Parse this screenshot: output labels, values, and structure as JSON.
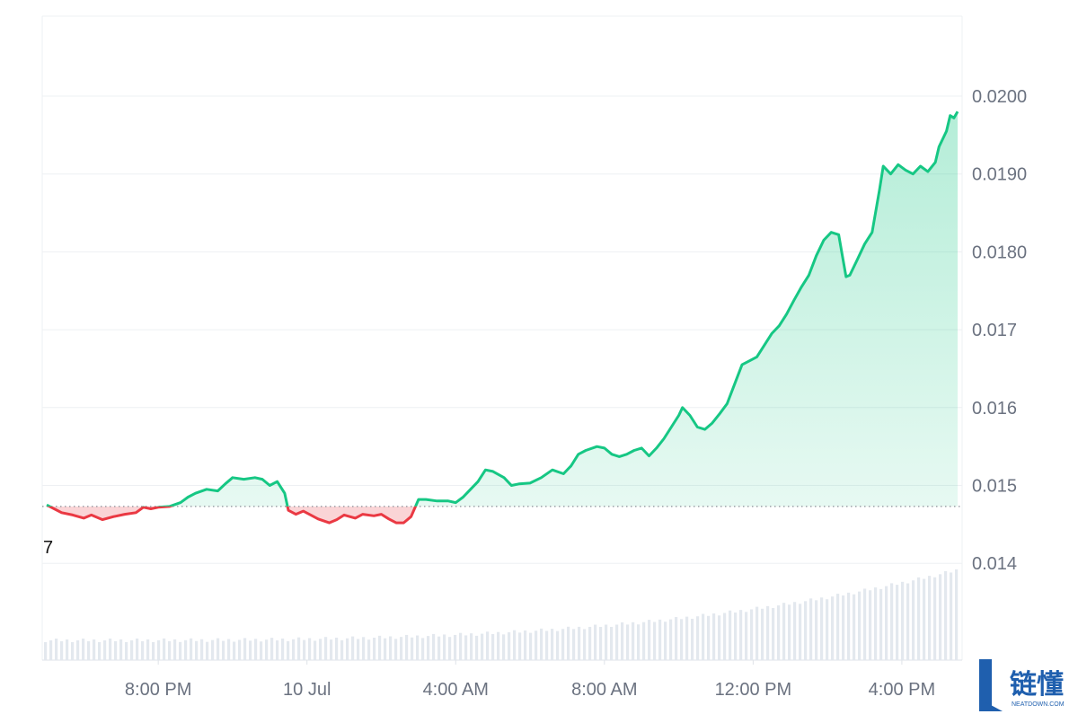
{
  "chart_data": {
    "type": "line",
    "baseline_value": 0.01473,
    "baseline_label": "7",
    "y_ticks": [
      "0.0200",
      "0.0190",
      "0.0180",
      "0.017",
      "0.016",
      "0.015",
      "0.014"
    ],
    "y_tick_values": [
      0.02,
      0.019,
      0.018,
      0.017,
      0.016,
      0.015,
      0.014
    ],
    "ylim": [
      0.0133,
      0.0212
    ],
    "x_ticks": [
      "8:00 PM",
      "10 Jul",
      "4:00 AM",
      "8:00 AM",
      "12:00 PM",
      "4:00 PM"
    ],
    "x_tick_hours": [
      3.0,
      7.0,
      11.0,
      15.0,
      19.0,
      23.0
    ],
    "x_range_hours": [
      0.0,
      24.5
    ],
    "price": [
      [
        0.0,
        0.01475
      ],
      [
        0.2,
        0.0147
      ],
      [
        0.4,
        0.01465
      ],
      [
        0.7,
        0.01462
      ],
      [
        1.0,
        0.01458
      ],
      [
        1.2,
        0.01462
      ],
      [
        1.5,
        0.01456
      ],
      [
        1.8,
        0.0146
      ],
      [
        2.1,
        0.01463
      ],
      [
        2.4,
        0.01465
      ],
      [
        2.6,
        0.01472
      ],
      [
        2.8,
        0.0147
      ],
      [
        3.0,
        0.01472
      ],
      [
        3.3,
        0.01473
      ],
      [
        3.6,
        0.01478
      ],
      [
        3.8,
        0.01485
      ],
      [
        4.0,
        0.0149
      ],
      [
        4.3,
        0.01495
      ],
      [
        4.6,
        0.01493
      ],
      [
        4.8,
        0.01502
      ],
      [
        5.0,
        0.0151
      ],
      [
        5.3,
        0.01508
      ],
      [
        5.6,
        0.0151
      ],
      [
        5.8,
        0.01508
      ],
      [
        6.0,
        0.015
      ],
      [
        6.2,
        0.01505
      ],
      [
        6.4,
        0.0149
      ],
      [
        6.5,
        0.01468
      ],
      [
        6.7,
        0.01463
      ],
      [
        6.9,
        0.01467
      ],
      [
        7.1,
        0.01462
      ],
      [
        7.3,
        0.01457
      ],
      [
        7.6,
        0.01452
      ],
      [
        7.8,
        0.01456
      ],
      [
        8.0,
        0.01462
      ],
      [
        8.3,
        0.01458
      ],
      [
        8.5,
        0.01463
      ],
      [
        8.8,
        0.01461
      ],
      [
        9.0,
        0.01463
      ],
      [
        9.2,
        0.01457
      ],
      [
        9.4,
        0.01452
      ],
      [
        9.6,
        0.01452
      ],
      [
        9.8,
        0.0146
      ],
      [
        10.0,
        0.01482
      ],
      [
        10.2,
        0.01482
      ],
      [
        10.5,
        0.0148
      ],
      [
        10.8,
        0.0148
      ],
      [
        11.0,
        0.01478
      ],
      [
        11.2,
        0.01485
      ],
      [
        11.4,
        0.01495
      ],
      [
        11.6,
        0.01505
      ],
      [
        11.8,
        0.0152
      ],
      [
        12.0,
        0.01518
      ],
      [
        12.3,
        0.0151
      ],
      [
        12.5,
        0.015
      ],
      [
        12.7,
        0.01502
      ],
      [
        13.0,
        0.01503
      ],
      [
        13.3,
        0.0151
      ],
      [
        13.6,
        0.0152
      ],
      [
        13.9,
        0.01515
      ],
      [
        14.1,
        0.01525
      ],
      [
        14.3,
        0.0154
      ],
      [
        14.5,
        0.01545
      ],
      [
        14.8,
        0.0155
      ],
      [
        15.0,
        0.01548
      ],
      [
        15.2,
        0.0154
      ],
      [
        15.4,
        0.01537
      ],
      [
        15.6,
        0.0154
      ],
      [
        15.8,
        0.01545
      ],
      [
        16.0,
        0.01548
      ],
      [
        16.2,
        0.01538
      ],
      [
        16.4,
        0.01548
      ],
      [
        16.6,
        0.0156
      ],
      [
        16.8,
        0.01575
      ],
      [
        17.0,
        0.0159
      ],
      [
        17.1,
        0.016
      ],
      [
        17.3,
        0.0159
      ],
      [
        17.5,
        0.01575
      ],
      [
        17.7,
        0.01572
      ],
      [
        17.9,
        0.0158
      ],
      [
        18.1,
        0.01592
      ],
      [
        18.3,
        0.01605
      ],
      [
        18.5,
        0.0163
      ],
      [
        18.7,
        0.01655
      ],
      [
        18.9,
        0.0166
      ],
      [
        19.1,
        0.01665
      ],
      [
        19.3,
        0.0168
      ],
      [
        19.5,
        0.01695
      ],
      [
        19.7,
        0.01705
      ],
      [
        19.9,
        0.0172
      ],
      [
        20.1,
        0.01738
      ],
      [
        20.3,
        0.01755
      ],
      [
        20.5,
        0.0177
      ],
      [
        20.7,
        0.01795
      ],
      [
        20.9,
        0.01815
      ],
      [
        21.1,
        0.01825
      ],
      [
        21.3,
        0.01822
      ],
      [
        21.4,
        0.01795
      ],
      [
        21.5,
        0.01768
      ],
      [
        21.6,
        0.0177
      ],
      [
        21.8,
        0.0179
      ],
      [
        22.0,
        0.0181
      ],
      [
        22.2,
        0.01825
      ],
      [
        22.4,
        0.0188
      ],
      [
        22.5,
        0.0191
      ],
      [
        22.7,
        0.019
      ],
      [
        22.9,
        0.01912
      ],
      [
        23.1,
        0.01905
      ],
      [
        23.3,
        0.019
      ],
      [
        23.5,
        0.0191
      ],
      [
        23.7,
        0.01903
      ],
      [
        23.9,
        0.01915
      ],
      [
        24.0,
        0.01935
      ],
      [
        24.2,
        0.01955
      ],
      [
        24.3,
        0.01975
      ],
      [
        24.4,
        0.01972
      ],
      [
        24.5,
        0.0198
      ]
    ],
    "colors": {
      "up": "#16c784",
      "down": "#ea3943",
      "grid": "#eef0f3",
      "volume": "#e3e8ee"
    }
  },
  "watermark": {
    "chinese_text": "链懂",
    "subtitle": "NEATDOWN.COM"
  }
}
